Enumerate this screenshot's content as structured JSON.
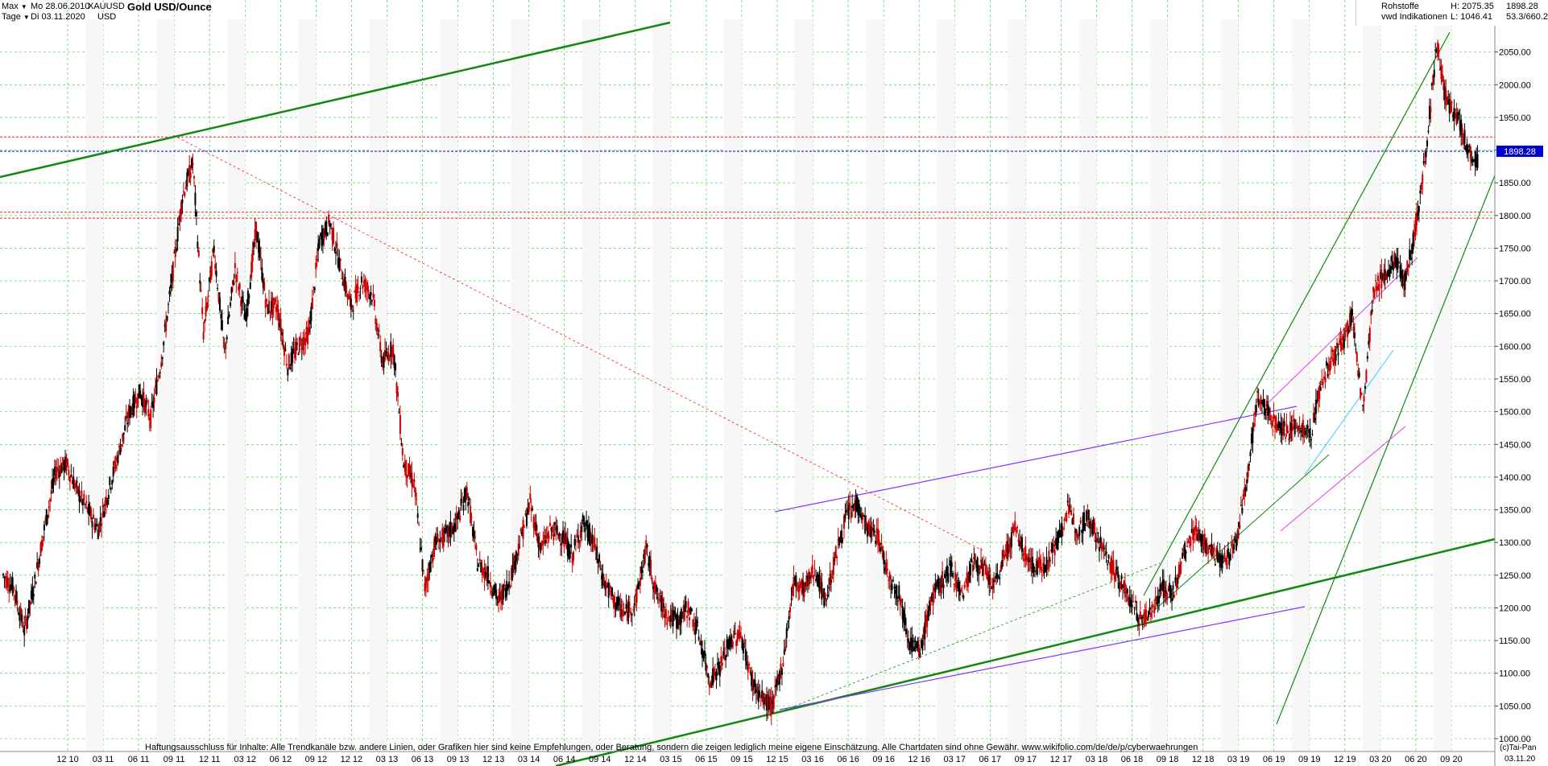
{
  "header": {
    "range_select": "Max",
    "unit_select": "Tage",
    "date_from": "Mo 28.06.2010",
    "date_to": "Di 03.11.2020",
    "symbol": "XAUUSD",
    "currency": "USD",
    "title": "Gold USD/Ounce",
    "category": "Rohstoffe",
    "source": "vwd Indikationen",
    "last_value": "1898.28",
    "high": "H: 2075.35",
    "low": "L: 1046.41",
    "stat_extra": "53.3/660.2"
  },
  "footer": {
    "disclaimer": "Haftungsausschluss für Inhalte: Alle Trendkanäle bzw. andere Linien, oder Grafiken hier sind keine Empfehlungen, oder Beratung, sondern die zeigen lediglich meine eigene Einschätzung. Alle Chartdaten sind ohne Gewähr.  www.wikifolio.com/de/de/p/cyberwaehrungen",
    "credit": "(c)Tai-Pan",
    "last_date": "03.11.20"
  },
  "colors": {
    "candle_up": "#000000",
    "candle_down": "#cc0000",
    "grid": "#33cc33",
    "trend_green": "#118811",
    "trend_purple": "#8833ff",
    "trend_magenta": "#dd44dd",
    "trend_cyan": "#33ccff",
    "resistance_red": "#ee2222",
    "last_price_blue": "#0000cc",
    "price_label_bg": "#0000cc"
  },
  "chart_data": {
    "type": "candlestick",
    "title": "Gold USD/Ounce",
    "xlabel": "",
    "ylabel": "",
    "ylim": [
      1000,
      2100
    ],
    "y_ticks": [
      1000,
      1050,
      1100,
      1150,
      1200,
      1250,
      1300,
      1350,
      1400,
      1450,
      1500,
      1550,
      1600,
      1650,
      1700,
      1750,
      1800,
      1850,
      1900,
      1950,
      2000,
      2050
    ],
    "y_tick_labels": [
      "1000.00",
      "1050.00",
      "1100.00",
      "1150.00",
      "1200.00",
      "1250.00",
      "1300.00",
      "1350.00",
      "1400.00",
      "1450.00",
      "1500.00",
      "1550.00",
      "1600.00",
      "1650.00",
      "1700.00",
      "1750.00",
      "1800.00",
      "1850.00",
      "1900.00",
      "1950.00",
      "2000.00",
      "2050.00"
    ],
    "x_tick_labels": [
      "12 10",
      "03 11",
      "06 11",
      "09 11",
      "12 11",
      "03 12",
      "06 12",
      "09 12",
      "12 12",
      "03 13",
      "06 13",
      "09 13",
      "12 13",
      "03 14",
      "06 14",
      "09 14",
      "12 14",
      "03 15",
      "06 15",
      "09 15",
      "12 15",
      "03 16",
      "06 16",
      "09 16",
      "12 16",
      "03 17",
      "06 17",
      "09 17",
      "12 17",
      "03 18",
      "06 18",
      "09 18",
      "12 18",
      "03 19",
      "06 19",
      "09 19",
      "12 19",
      "03 20",
      "06 20",
      "09 20"
    ],
    "grid": true,
    "last_price_line": 1898.28,
    "last_price_label": "1898.28",
    "horizontal_levels": [
      {
        "value": 1920,
        "color": "red",
        "style": "dashed"
      },
      {
        "value": 1805,
        "color": "red",
        "style": "dashed"
      },
      {
        "value": 1796,
        "color": "red",
        "style": "dashed"
      },
      {
        "value": 1898.28,
        "color": "blue",
        "style": "dashed"
      }
    ],
    "price_path": [
      [
        0,
        1250
      ],
      [
        1,
        1230
      ],
      [
        2,
        1165
      ],
      [
        3,
        1240
      ],
      [
        4,
        1330
      ],
      [
        5,
        1410
      ],
      [
        6,
        1420
      ],
      [
        7,
        1380
      ],
      [
        8,
        1350
      ],
      [
        9,
        1320
      ],
      [
        10,
        1380
      ],
      [
        11,
        1440
      ],
      [
        12,
        1500
      ],
      [
        13,
        1530
      ],
      [
        14,
        1490
      ],
      [
        15,
        1580
      ],
      [
        16,
        1700
      ],
      [
        17,
        1830
      ],
      [
        18,
        1880
      ],
      [
        19,
        1620
      ],
      [
        20,
        1750
      ],
      [
        21,
        1590
      ],
      [
        22,
        1720
      ],
      [
        23,
        1640
      ],
      [
        24,
        1780
      ],
      [
        25,
        1660
      ],
      [
        26,
        1660
      ],
      [
        27,
        1570
      ],
      [
        28,
        1600
      ],
      [
        29,
        1620
      ],
      [
        30,
        1760
      ],
      [
        31,
        1790
      ],
      [
        32,
        1720
      ],
      [
        33,
        1660
      ],
      [
        34,
        1700
      ],
      [
        35,
        1680
      ],
      [
        36,
        1575
      ],
      [
        37,
        1600
      ],
      [
        38,
        1420
      ],
      [
        39,
        1390
      ],
      [
        40,
        1230
      ],
      [
        41,
        1300
      ],
      [
        42,
        1310
      ],
      [
        43,
        1330
      ],
      [
        44,
        1380
      ],
      [
        45,
        1270
      ],
      [
        46,
        1250
      ],
      [
        47,
        1210
      ],
      [
        48,
        1240
      ],
      [
        49,
        1300
      ],
      [
        50,
        1360
      ],
      [
        51,
        1290
      ],
      [
        52,
        1320
      ],
      [
        53,
        1310
      ],
      [
        54,
        1280
      ],
      [
        55,
        1330
      ],
      [
        56,
        1300
      ],
      [
        57,
        1240
      ],
      [
        58,
        1210
      ],
      [
        59,
        1190
      ],
      [
        60,
        1210
      ],
      [
        61,
        1290
      ],
      [
        62,
        1220
      ],
      [
        63,
        1190
      ],
      [
        64,
        1180
      ],
      [
        65,
        1200
      ],
      [
        66,
        1160
      ],
      [
        67,
        1090
      ],
      [
        68,
        1110
      ],
      [
        69,
        1150
      ],
      [
        70,
        1160
      ],
      [
        71,
        1090
      ],
      [
        72,
        1060
      ],
      [
        73,
        1050
      ],
      [
        74,
        1120
      ],
      [
        75,
        1240
      ],
      [
        76,
        1230
      ],
      [
        77,
        1260
      ],
      [
        78,
        1210
      ],
      [
        79,
        1280
      ],
      [
        80,
        1340
      ],
      [
        81,
        1360
      ],
      [
        82,
        1320
      ],
      [
        83,
        1310
      ],
      [
        84,
        1250
      ],
      [
        85,
        1220
      ],
      [
        86,
        1150
      ],
      [
        87,
        1130
      ],
      [
        88,
        1210
      ],
      [
        89,
        1240
      ],
      [
        90,
        1260
      ],
      [
        91,
        1220
      ],
      [
        92,
        1270
      ],
      [
        93,
        1260
      ],
      [
        94,
        1230
      ],
      [
        95,
        1280
      ],
      [
        96,
        1320
      ],
      [
        97,
        1280
      ],
      [
        98,
        1260
      ],
      [
        99,
        1270
      ],
      [
        100,
        1300
      ],
      [
        101,
        1350
      ],
      [
        102,
        1320
      ],
      [
        103,
        1340
      ],
      [
        104,
        1300
      ],
      [
        105,
        1270
      ],
      [
        106,
        1240
      ],
      [
        107,
        1210
      ],
      [
        108,
        1180
      ],
      [
        109,
        1200
      ],
      [
        110,
        1230
      ],
      [
        111,
        1220
      ],
      [
        112,
        1280
      ],
      [
        113,
        1320
      ],
      [
        114,
        1300
      ],
      [
        115,
        1280
      ],
      [
        116,
        1270
      ],
      [
        117,
        1300
      ],
      [
        118,
        1400
      ],
      [
        119,
        1520
      ],
      [
        120,
        1500
      ],
      [
        121,
        1480
      ],
      [
        122,
        1470
      ],
      [
        123,
        1480
      ],
      [
        124,
        1460
      ],
      [
        125,
        1540
      ],
      [
        126,
        1580
      ],
      [
        127,
        1600
      ],
      [
        128,
        1650
      ],
      [
        129,
        1500
      ],
      [
        130,
        1680
      ],
      [
        131,
        1710
      ],
      [
        132,
        1730
      ],
      [
        133,
        1700
      ],
      [
        134,
        1780
      ],
      [
        135,
        1900
      ],
      [
        136,
        2060
      ],
      [
        137,
        1970
      ],
      [
        138,
        1950
      ],
      [
        139,
        1900
      ],
      [
        140,
        1880
      ]
    ],
    "trend_lines": [
      {
        "label": "long-term-upper",
        "color": "green"
      },
      {
        "label": "long-term-lower",
        "color": "green"
      },
      {
        "label": "steep-channel",
        "color": "green"
      },
      {
        "label": "purple-channel",
        "color": "purple"
      },
      {
        "label": "resistance-dotted",
        "color": "red"
      }
    ]
  }
}
